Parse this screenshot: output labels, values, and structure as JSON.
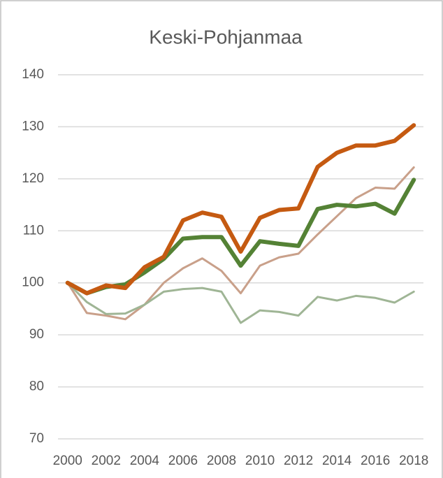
{
  "chart_data": {
    "type": "line",
    "title": "Keski-Pohjanmaa",
    "x": [
      2000,
      2001,
      2002,
      2003,
      2004,
      2005,
      2006,
      2007,
      2008,
      2009,
      2010,
      2011,
      2012,
      2013,
      2014,
      2015,
      2016,
      2017,
      2018
    ],
    "series": [
      {
        "color": "#c9a08a",
        "width": 3,
        "values": [
          100,
          94.2,
          93.7,
          93,
          95.8,
          100,
          102.8,
          104.7,
          102.3,
          98,
          103.3,
          104.9,
          105.6,
          109.3,
          112.8,
          116.3,
          118.3,
          118.1,
          122.2
        ]
      },
      {
        "color": "#9fb595",
        "width": 3,
        "values": [
          100,
          96.3,
          94,
          94.1,
          95.8,
          98.3,
          98.8,
          99,
          98.3,
          92.3,
          94.7,
          94.4,
          93.7,
          97.3,
          96.6,
          97.5,
          97.1,
          96.2,
          98.3
        ]
      },
      {
        "color": "#548235",
        "width": 6,
        "values": [
          100,
          98,
          99.2,
          99.7,
          102,
          104.6,
          108.5,
          108.8,
          108.8,
          103.3,
          108,
          107.5,
          107.1,
          114.2,
          115,
          114.7,
          115.2,
          113.3,
          119.8
        ]
      },
      {
        "color": "#c55a11",
        "width": 6,
        "values": [
          100,
          98,
          99.5,
          99,
          103,
          105,
          112,
          113.5,
          112.7,
          106,
          112.5,
          114,
          114.3,
          122.3,
          125,
          126.4,
          126.4,
          127.3,
          130.3
        ]
      }
    ],
    "xlim": [
      1999.5,
      2018.5
    ],
    "xticks": [
      2000,
      2002,
      2004,
      2006,
      2008,
      2010,
      2012,
      2014,
      2016,
      2018
    ],
    "ylim": [
      70,
      140
    ],
    "yticks": [
      70,
      80,
      90,
      100,
      110,
      120,
      130,
      140
    ],
    "grid": true
  }
}
